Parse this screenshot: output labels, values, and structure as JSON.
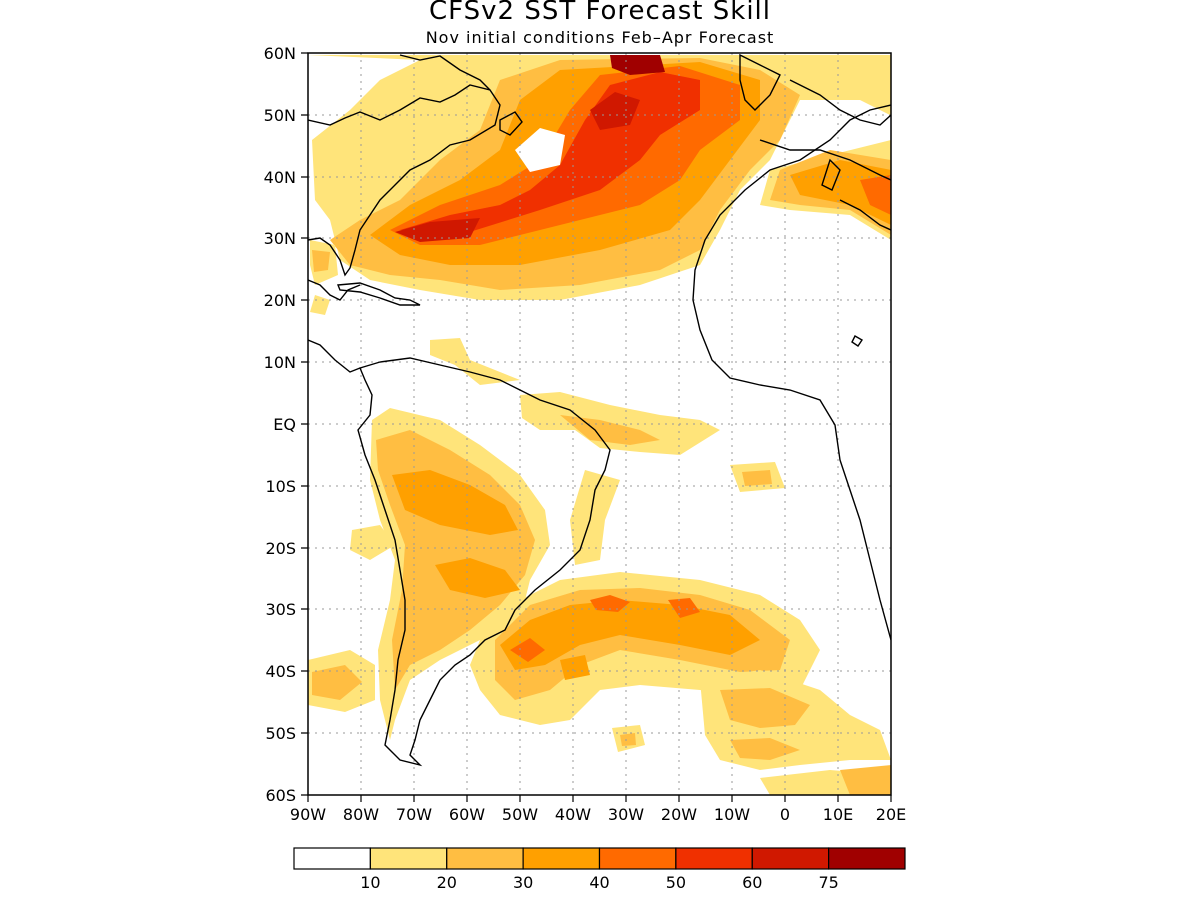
{
  "title": "CFSv2 SST Forecast Skill",
  "subtitle": "Nov initial conditions  Feb–Apr Forecast",
  "lat_labels": [
    "60N",
    "50N",
    "40N",
    "30N",
    "20N",
    "10N",
    "EQ",
    "10S",
    "20S",
    "30S",
    "40S",
    "50S",
    "60S"
  ],
  "lon_labels": [
    "90W",
    "80W",
    "70W",
    "60W",
    "50W",
    "40W",
    "30W",
    "20W",
    "10W",
    "0",
    "10E",
    "20E"
  ],
  "colorbar": {
    "labels": [
      "10",
      "20",
      "30",
      "40",
      "50",
      "60",
      "75"
    ],
    "colors": [
      "#ffffff",
      "#ffe47a",
      "#ffbe42",
      "#ffa000",
      "#ff6a00",
      "#f03000",
      "#d01800",
      "#a00000"
    ]
  },
  "colors": {
    "land_outline": "#000000",
    "grid": "#999999"
  }
}
